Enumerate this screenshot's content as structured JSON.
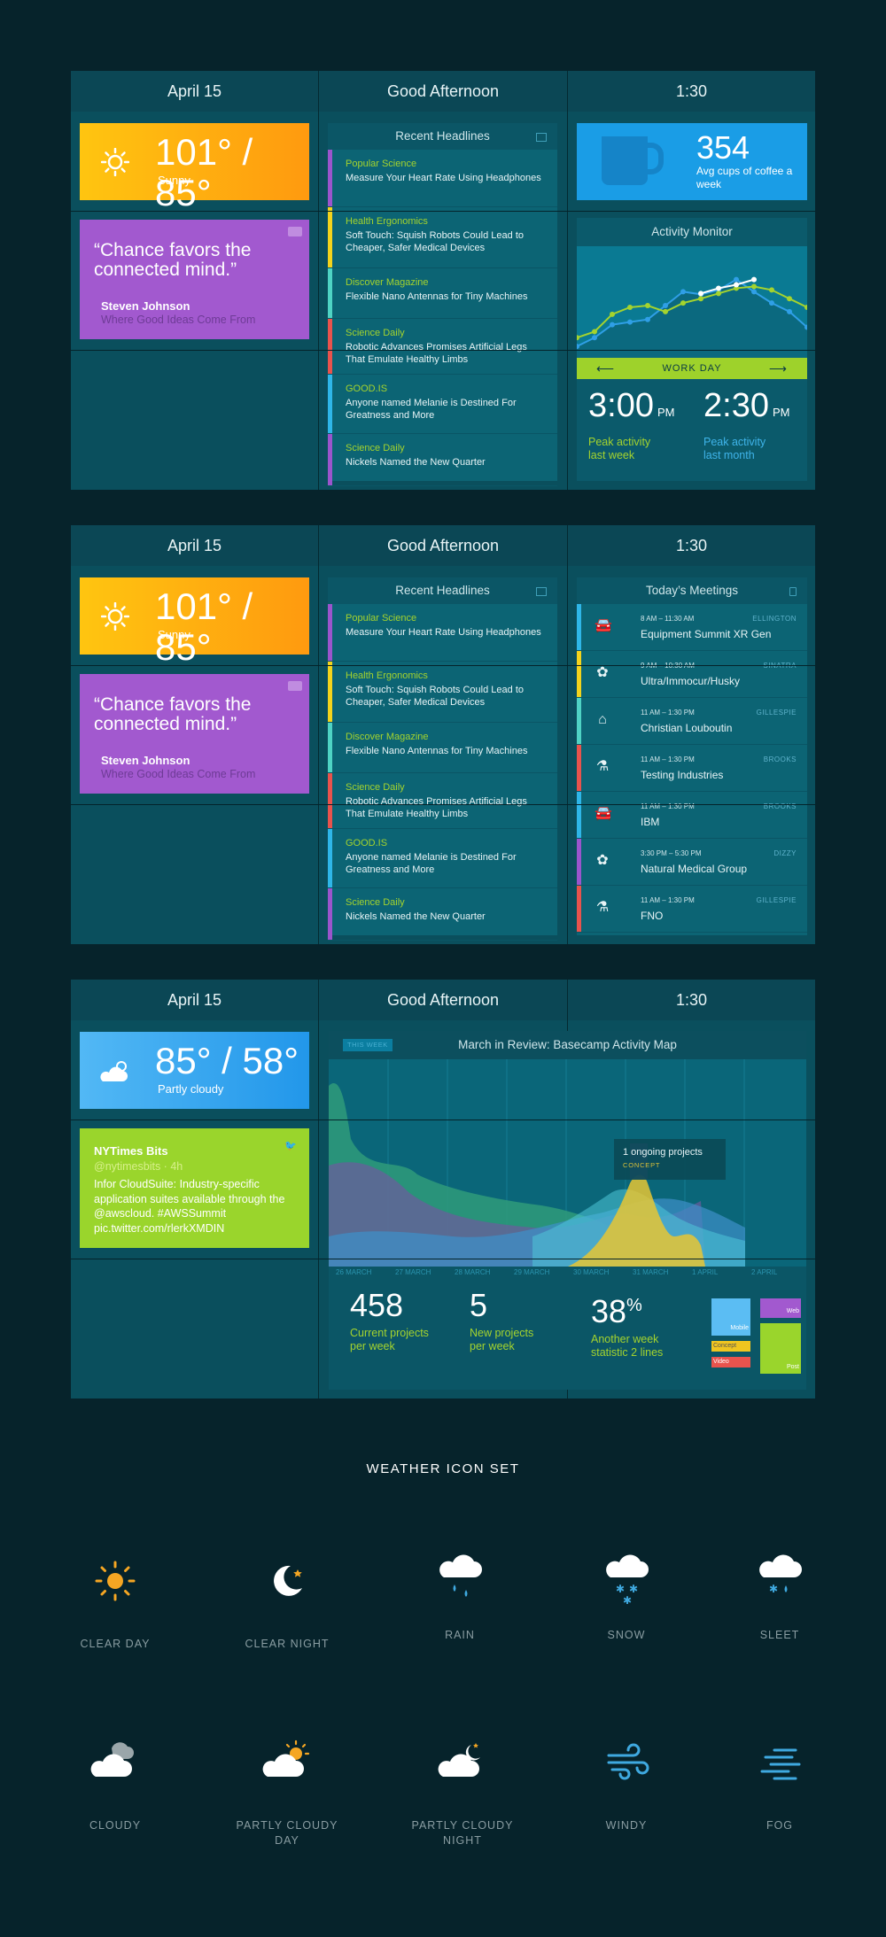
{
  "dashboards": [
    {
      "date": "April 15",
      "greeting": "Good Afternoon",
      "time": "1:30"
    },
    {
      "date": "April 15",
      "greeting": "Good Afternoon",
      "time": "1:30"
    },
    {
      "date": "April 15",
      "greeting": "Good Afternoon",
      "time": "1:30"
    }
  ],
  "weather_sunny": {
    "temp": "101° / 85°",
    "condition": "Sunny"
  },
  "weather_cloudy": {
    "temp": "85° / 58°",
    "condition": "Partly cloudy"
  },
  "quote": {
    "text": "“Chance favors the connected mind.”",
    "author": "Steven Johnson",
    "source": "Where Good Ideas Come From"
  },
  "headlines": {
    "title": "Recent Headlines",
    "items": [
      {
        "source": "Popular Science",
        "title": "Measure Your Heart Rate Using Headphones",
        "color": "#9b55cc"
      },
      {
        "source": "Health Ergonomics",
        "title": "Soft Touch: Squish Robots Could Lead to Cheaper, Safer Medical Devices",
        "color": "#f3d31c"
      },
      {
        "source": "Discover Magazine",
        "title": "Flexible Nano Antennas for Tiny Machines",
        "color": "#4fd3c4"
      },
      {
        "source": "Science Daily",
        "title": "Robotic Advances Promises Artificial Legs That Emulate Healthy Limbs",
        "color": "#e8534d"
      },
      {
        "source": "GOOD.IS",
        "title": "Anyone named Melanie is Destined For Greatness and More",
        "color": "#2fb6e8"
      },
      {
        "source": "Science Daily",
        "title": "Nickels Named the New Quarter",
        "color": "#9b55cc"
      }
    ]
  },
  "coffee": {
    "count": "354",
    "label": "Avg cups of coffee a week"
  },
  "activity": {
    "title": "Activity Monitor",
    "nav_label": "WORK DAY",
    "peak_week": {
      "time": "3:00",
      "suffix": "PM",
      "label": "Peak activity last week"
    },
    "peak_month": {
      "time": "2:30",
      "suffix": "PM",
      "label": "Peak activity last month"
    },
    "series_green": [
      0.15,
      0.22,
      0.42,
      0.5,
      0.52,
      0.45,
      0.55,
      0.6,
      0.66,
      0.72,
      0.74,
      0.7,
      0.6,
      0.5
    ],
    "series_blue": [
      0.05,
      0.15,
      0.3,
      0.33,
      0.36,
      0.52,
      0.68,
      0.65,
      0.7,
      0.82,
      0.68,
      0.55,
      0.45,
      0.27
    ],
    "series_white": [
      0.66,
      0.72,
      0.76,
      0.82
    ]
  },
  "meetings": {
    "title": "Today’s Meetings",
    "items": [
      {
        "time": "8 AM – 11:30 AM",
        "room": "ELLINGTON",
        "name": "Equipment Summit XR Gen",
        "icon": "car-icon",
        "glyph": "🚘",
        "color": "#2fb6e8"
      },
      {
        "time": "9 AM – 10:30 AM",
        "room": "SINATRA",
        "name": "Ultra/Immocur/Husky",
        "icon": "brain-icon",
        "glyph": "✿",
        "color": "#f3d31c"
      },
      {
        "time": "11 AM – 1:30 PM",
        "room": "GILLESPIE",
        "name": "Christian Louboutin",
        "icon": "hanger-icon",
        "glyph": "⌂",
        "color": "#4fd3c4"
      },
      {
        "time": "11 AM – 1:30 PM",
        "room": "BROOKS",
        "name": "Testing Industries",
        "icon": "flask-icon",
        "glyph": "⚗",
        "color": "#e8534d"
      },
      {
        "time": "11 AM – 1:30 PM",
        "room": "BROOKS",
        "name": "IBM",
        "icon": "car-icon",
        "glyph": "🚘",
        "color": "#2fb6e8"
      },
      {
        "time": "3:30 PM – 5:30 PM",
        "room": "DIZZY",
        "name": "Natural Medical Group",
        "icon": "brain-icon",
        "glyph": "✿",
        "color": "#9b55cc"
      },
      {
        "time": "11 AM – 1:30 PM",
        "room": "GILLESPIE",
        "name": "FNO",
        "icon": "flask-icon",
        "glyph": "⚗",
        "color": "#e8534d"
      }
    ]
  },
  "tweet": {
    "name": "NYTimes Bits",
    "handle": "@nytimesbits · 4h",
    "text": "Infor CloudSuite: Industry-specific application suites available through the @awscloud. #AWSSummit pic.twitter.com/rlerkXMDIN"
  },
  "basecamp": {
    "badge": "THIS WEEK",
    "title": "March in Review: Basecamp Activity Map",
    "tooltip_title": "1 ongoing projects",
    "tooltip_tag": "CONCEPT",
    "dates": [
      "26 MARCH",
      "27 MARCH",
      "28 MARCH",
      "29 MARCH",
      "30 MARCH",
      "31 MARCH",
      "1 APRIL",
      "2 APRIL"
    ],
    "stats": [
      {
        "value": "458",
        "label": "Current projects per week"
      },
      {
        "value": "5",
        "label": "New projects per week"
      },
      {
        "value": "38",
        "unit": "%",
        "label": "Another week statistic 2 lines"
      }
    ],
    "tiles": {
      "mobile": "Mobile",
      "web": "Web",
      "concept": "Concept",
      "video": "Video",
      "post": "Post"
    }
  },
  "icon_set": {
    "title": "WEATHER ICON SET",
    "icons": [
      "CLEAR DAY",
      "CLEAR NIGHT",
      "RAIN",
      "SNOW",
      "SLEET",
      "CLOUDY",
      "PARTLY CLOUDY DAY",
      "PARTLY CLOUDY NIGHT",
      "WINDY",
      "FOG"
    ]
  },
  "colors": {
    "background": "#06232b",
    "panel": "#0a4f5d",
    "accent_green": "#a4d32e",
    "accent_blue": "#1a9de6",
    "sun_orange": "#ffc510",
    "quote_purple": "#a259cf"
  }
}
